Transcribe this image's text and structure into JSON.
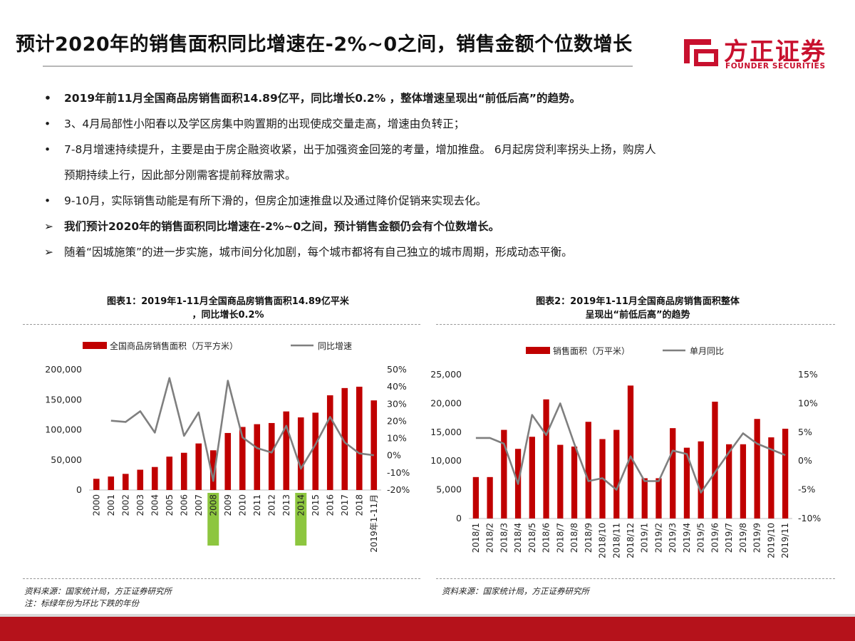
{
  "title": "预计2020年的销售面积同比增速在-2%~0之间，销售金额个位数增长",
  "logo": {
    "cn": "方正证券",
    "en": "FOUNDER SECURITIES",
    "color": "#c8102e"
  },
  "bullets": [
    {
      "marker": "•",
      "text": "2019年前11月全国商品房销售面积14.89亿平，同比增长0.2% ，整体增速呈现出“前低后高”的趋势。",
      "bold": true
    },
    {
      "marker": "•",
      "text": "3、4月局部性小阳春以及学区房集中购置期的出现使成交量走高，增速由负转正；",
      "bold": false
    },
    {
      "marker": "•",
      "text": "7-8月增速持续提升，主要是由于房企融资收紧，出于加强资金回笼的考量，增加推盘。 6月起房贷利率拐头上扬，购房人",
      "bold": false
    },
    {
      "marker": "",
      "text": "预期持续上行，因此部分刚需客提前释放需求。",
      "bold": false
    },
    {
      "marker": "•",
      "text": "9-10月，实际销售动能是有所下滑的，但房企加速推盘以及通过降价促销来实现去化。",
      "bold": false
    },
    {
      "marker": "➢",
      "text": "我们预计2020年的销售面积同比增速在-2%~0之间，预计销售金额仍会有个位数增长。",
      "bold": true
    },
    {
      "marker": "➢",
      "text": "随着“因城施策”的进一步实施，城市间分化加剧，每个城市都将有自己独立的城市周期，形成动态平衡。",
      "bold": false
    }
  ],
  "chart1": {
    "title_line1": "图表1：2019年1-11月全国商品房销售面积14.89亿平米",
    "title_line2": "，同比增长0.2%",
    "source": "资料来源：国家统计局，方正证券研究所",
    "note": "注：标绿年份为环比下跌的年份"
  },
  "chart2": {
    "title_line1": "图表2：2019年1-11月全国商品房销售面积整体",
    "title_line2": "呈现出“前低后高”的趋势",
    "source": "资料来源：国家统计局，方正证券研究所"
  },
  "chart_data": [
    {
      "type": "bar",
      "title": "图表1：2019年1-11月全国商品房销售面积14.89亿平米，同比增长0.2%",
      "categories": [
        "2000",
        "2001",
        "2002",
        "2003",
        "2004",
        "2005",
        "2006",
        "2007",
        "2008",
        "2009",
        "2010",
        "2011",
        "2012",
        "2013",
        "2014",
        "2015",
        "2016",
        "2017",
        "2018",
        "2019年1-11月"
      ],
      "highlighted_categories": [
        "2008",
        "2014"
      ],
      "highlight_color": "#8dc63f",
      "series": [
        {
          "name": "全国商品房销售面积（万平方米）",
          "type": "bar",
          "axis": "left",
          "color": "#c00000",
          "values": [
            18637,
            22412,
            26808,
            33718,
            38232,
            55486,
            61857,
            77355,
            65970,
            94755,
            104765,
            109366,
            111304,
            130551,
            120649,
            128495,
            157349,
            169408,
            171654,
            148905
          ]
        },
        {
          "name": "同比增速",
          "type": "line",
          "axis": "right",
          "color": "#7f7f7f",
          "values": [
            null,
            20.3,
            19.6,
            25.8,
            13.4,
            45.1,
            11.5,
            25.1,
            -14.7,
            43.6,
            10.6,
            4.4,
            1.8,
            17.3,
            -7.6,
            6.5,
            22.5,
            7.7,
            1.3,
            0.2
          ]
        }
      ],
      "ylim": [
        0,
        200000
      ],
      "yticks": [
        "0",
        "50,000",
        "100,000",
        "150,000",
        "200,000"
      ],
      "y2lim": [
        -20,
        50
      ],
      "y2ticks": [
        "-20%",
        "-10%",
        "0%",
        "10%",
        "20%",
        "30%",
        "40%",
        "50%"
      ],
      "legend_position": "top"
    },
    {
      "type": "bar",
      "title": "图表2：2019年1-11月全国商品房销售面积整体呈现出“前低后高”的趋势",
      "categories": [
        "2018/1",
        "2018/2",
        "2018/3",
        "2018/4",
        "2018/5",
        "2018/6",
        "2018/7",
        "2018/8",
        "2018/9",
        "2018/10",
        "2018/11",
        "2018/12",
        "2019/1",
        "2019/2",
        "2019/3",
        "2019/4",
        "2019/5",
        "2019/6",
        "2019/7",
        "2019/8",
        "2019/9",
        "2019/10",
        "2019/11"
      ],
      "series": [
        {
          "name": "销售面积（万平米）",
          "type": "bar",
          "axis": "left",
          "color": "#c00000",
          "values": [
            7200,
            7200,
            15400,
            12100,
            14200,
            20700,
            12800,
            12500,
            16800,
            13800,
            15400,
            23100,
            7000,
            7000,
            15700,
            12300,
            13400,
            20300,
            12900,
            12900,
            17300,
            14100,
            15600
          ]
        },
        {
          "name": "单月同比",
          "type": "line",
          "axis": "right",
          "color": "#7f7f7f",
          "values": [
            4.0,
            4.0,
            3.0,
            -4.0,
            8.0,
            4.5,
            10.0,
            3.0,
            -3.5,
            -3.0,
            -5.0,
            0.8,
            -3.5,
            -3.5,
            1.8,
            1.2,
            -5.5,
            -2.0,
            1.5,
            4.8,
            3.0,
            2.0,
            1.0
          ]
        }
      ],
      "ylim": [
        0,
        25000
      ],
      "yticks": [
        "0",
        "5,000",
        "10,000",
        "15,000",
        "20,000",
        "25,000"
      ],
      "y2lim": [
        -10,
        15
      ],
      "y2ticks": [
        "-10%",
        "-5%",
        "0%",
        "5%",
        "10%",
        "15%"
      ],
      "legend_position": "top"
    }
  ]
}
